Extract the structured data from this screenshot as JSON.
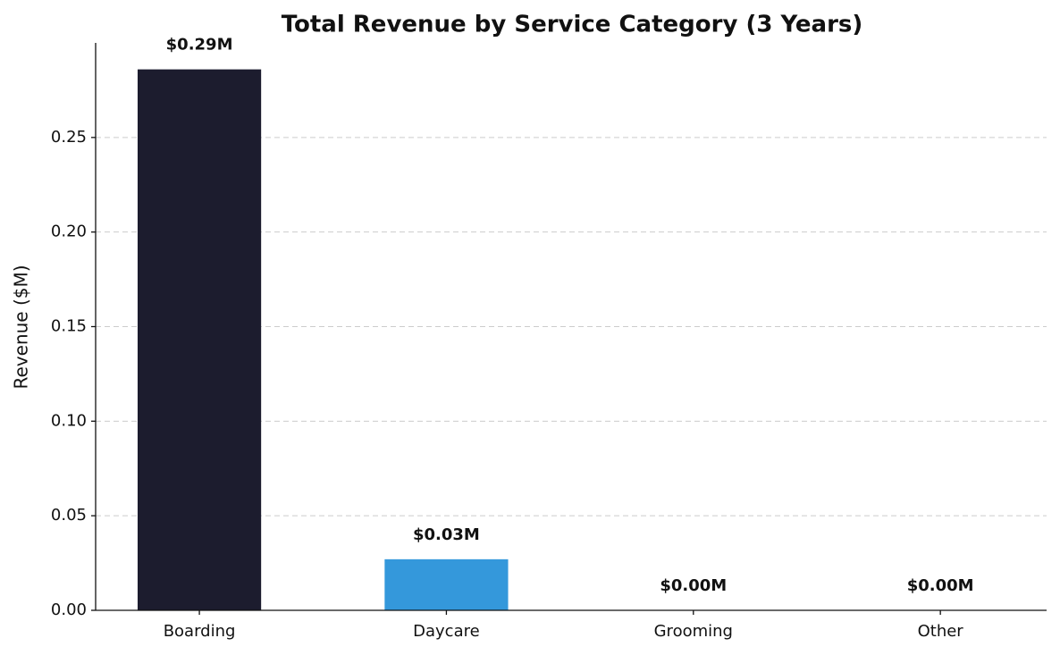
{
  "chart_data": {
    "type": "bar",
    "title": "Total Revenue by Service Category (3 Years)",
    "y_label": "Revenue ($M)",
    "categories": [
      "Boarding",
      "Daycare",
      "Grooming",
      "Other"
    ],
    "values": [
      0.286,
      0.027,
      0,
      0
    ],
    "value_labels": [
      "$0.29M",
      "$0.03M",
      "$0.00M",
      "$0.00M"
    ],
    "colors": [
      "#1c1c2e",
      "#3498db",
      "#e67e22",
      "#95a5a6"
    ],
    "ylim": [
      0,
      0.3
    ],
    "yticks": [
      {
        "value": 0,
        "label": "0.00"
      },
      {
        "value": 0.05,
        "label": "0.05"
      },
      {
        "value": 0.1,
        "label": "0.10"
      },
      {
        "value": 0.15,
        "label": "0.15"
      },
      {
        "value": 0.2,
        "label": "0.20"
      },
      {
        "value": 0.25,
        "label": "0.25"
      }
    ],
    "grid": true
  }
}
